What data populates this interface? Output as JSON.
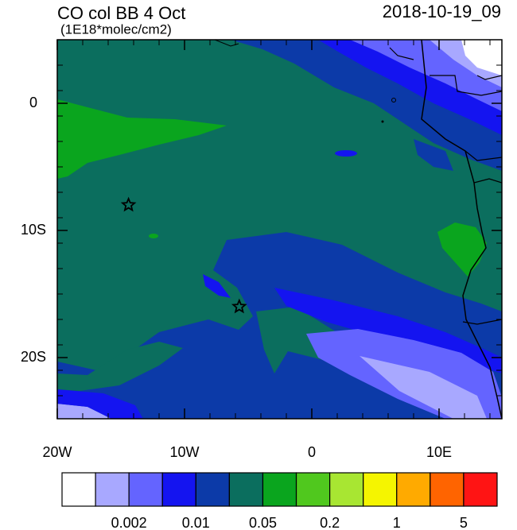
{
  "title": "CO col BB 4 Oct",
  "subtitle": "(1E18*molec/cm2)",
  "timestamp": "2018-10-19_09",
  "map": {
    "lon_range": [
      -20,
      15
    ],
    "lat_range": [
      -25,
      5
    ],
    "lon_ticks": [
      {
        "value": -20,
        "label": "20W"
      },
      {
        "value": -10,
        "label": "10W"
      },
      0,
      {
        "value": 10,
        "label": "10E"
      }
    ],
    "lat_ticks": [
      0,
      {
        "value": -10,
        "label": "10S"
      },
      {
        "value": -20,
        "label": "20S"
      }
    ],
    "markers": [
      {
        "lon": -14.4,
        "lat": -8
      },
      {
        "lon": -5.7,
        "lat": -16
      }
    ]
  },
  "colorbar": {
    "colors": [
      "#ffffff",
      "#a8a8ff",
      "#6464ff",
      "#1414f0",
      "#0c3aa8",
      "#0b6e5e",
      "#0aa51e",
      "#50c81e",
      "#a8e632",
      "#f5f500",
      "#ffaa00",
      "#ff6400",
      "#ff1414"
    ],
    "labels": [
      "0.002",
      "0.01",
      "0.05",
      "0.2",
      "1",
      "5"
    ]
  }
}
